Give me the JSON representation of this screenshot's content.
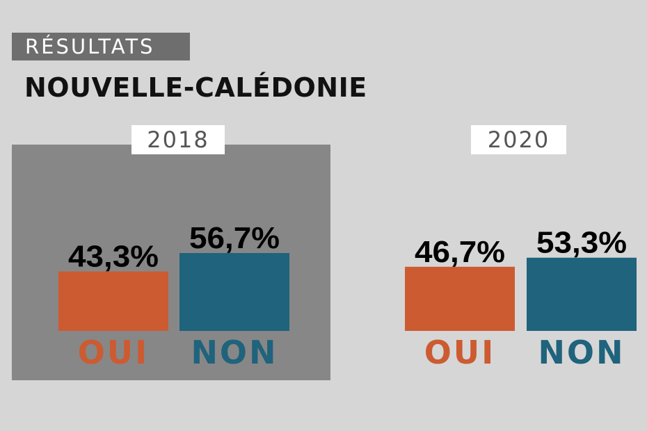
{
  "header": {
    "kicker": "RÉSULTATS",
    "title": "NOUVELLE-CALÉDONIE"
  },
  "colors": {
    "oui": "#cc5b31",
    "non": "#1f637c",
    "panel_highlight": "#878787",
    "background": "#d6d6d6"
  },
  "chart_data": [
    {
      "type": "bar",
      "title": "2018",
      "categories": [
        "OUI",
        "NON"
      ],
      "values": [
        43.3,
        56.7
      ],
      "value_labels": [
        "43,3%",
        "56,7%"
      ],
      "colors": [
        "#cc5b31",
        "#1f637c"
      ],
      "highlighted": true
    },
    {
      "type": "bar",
      "title": "2020",
      "categories": [
        "OUI",
        "NON"
      ],
      "values": [
        46.7,
        53.3
      ],
      "value_labels": [
        "46,7%",
        "53,3%"
      ],
      "colors": [
        "#cc5b31",
        "#1f637c"
      ],
      "highlighted": false
    }
  ]
}
